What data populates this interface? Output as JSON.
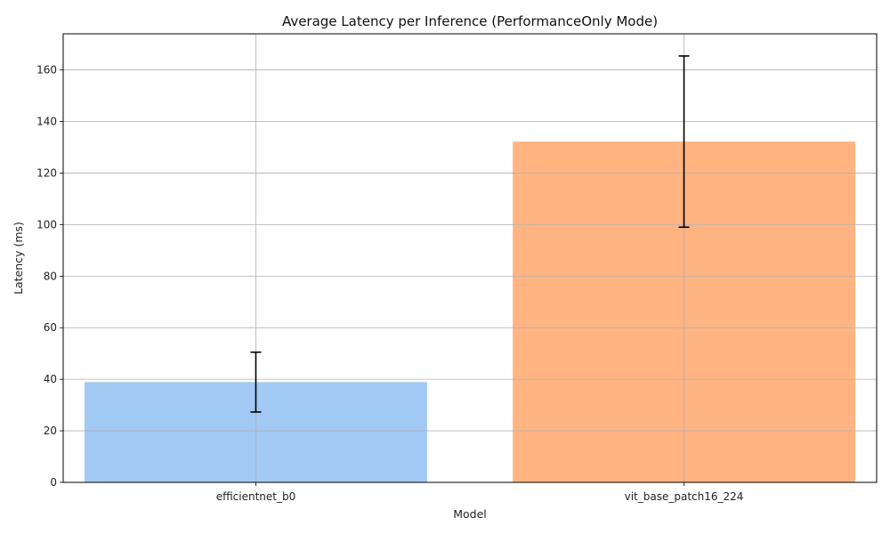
{
  "chart_data": {
    "type": "bar",
    "title": "Average Latency per Inference (PerformanceOnly Mode)",
    "xlabel": "Model",
    "ylabel": "Latency (ms)",
    "categories": [
      "efficientnet_b0",
      "vit_base_patch16_224"
    ],
    "values": [
      38.9,
      132.2
    ],
    "errors": [
      11.6,
      33.2
    ],
    "colors": [
      "#a1c9f4",
      "#ffb482"
    ],
    "ylim": [
      0,
      174
    ],
    "yticks": [
      0,
      20,
      40,
      60,
      80,
      100,
      120,
      140,
      160
    ],
    "grid": true
  }
}
